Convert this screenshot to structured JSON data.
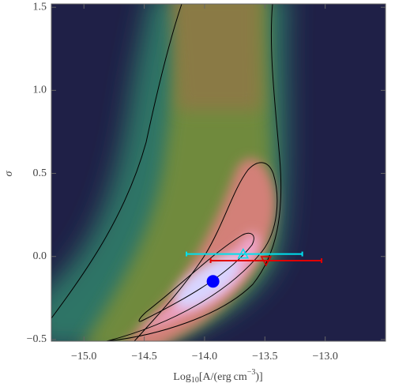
{
  "chart_data": {
    "type": "density",
    "x_label": [
      "Log",
      "10",
      "[A/(erg cm",
      "−3",
      ")]"
    ],
    "y_label": "σ",
    "xlim": [
      -15.27,
      -12.5
    ],
    "ylim": [
      -0.51,
      1.52
    ],
    "xticks": [
      {
        "value": -15.0,
        "label": "−15.0"
      },
      {
        "value": -14.5,
        "label": "−14.5"
      },
      {
        "value": -14.0,
        "label": "−14.0"
      },
      {
        "value": -13.5,
        "label": "−13.5"
      },
      {
        "value": -13.0,
        "label": "−13.0"
      }
    ],
    "yticks": [
      {
        "value": -0.5,
        "label": "−0.5"
      },
      {
        "value": 0,
        "label": "0.0"
      },
      {
        "value": 0.5,
        "label": "0.5"
      },
      {
        "value": 1.0,
        "label": "1.0"
      },
      {
        "value": 1.5,
        "label": "1.5"
      }
    ],
    "grid": false,
    "points": [
      {
        "x": -13.93,
        "y": -0.15,
        "color": "#0000ff",
        "marker": "circle"
      },
      {
        "x": -13.68,
        "y": 0.015,
        "xmin": -14.15,
        "xmax": -13.19,
        "color": "#00e0ee",
        "marker": "triangle"
      },
      {
        "x": -13.49,
        "y": -0.025,
        "xmin": -13.95,
        "xmax": -13.03,
        "color": "#e00000",
        "marker": "triangle-down"
      }
    ]
  }
}
